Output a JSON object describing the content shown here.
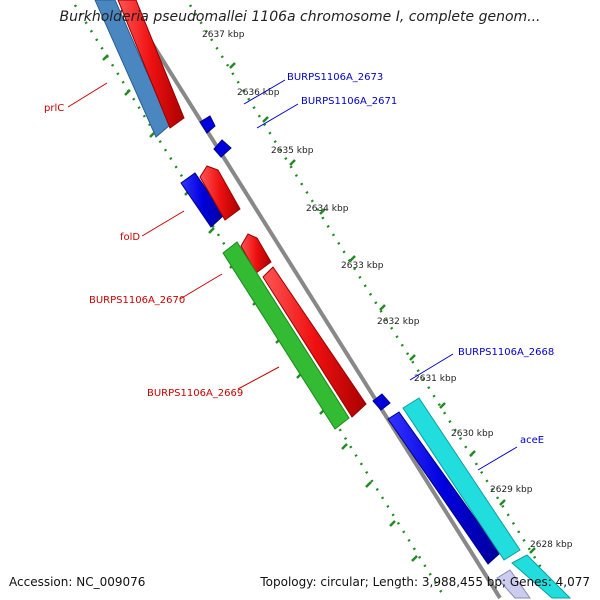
{
  "title": "Burkholderia pseudomallei 1106a chromosome I, complete genom...",
  "footer": {
    "accession": "Accession: NC_009076",
    "summary": "Topology: circular; Length: 3,988,455 bp; Genes: 4,077"
  },
  "ticks": [
    {
      "label": "2637 kbp"
    },
    {
      "label": "2636 kbp"
    },
    {
      "label": "2635 kbp"
    },
    {
      "label": "2634 kbp"
    },
    {
      "label": "2633 kbp"
    },
    {
      "label": "2632 kbp"
    },
    {
      "label": "2631 kbp"
    },
    {
      "label": "2630 kbp"
    },
    {
      "label": "2629 kbp"
    },
    {
      "label": "2628 kbp"
    }
  ],
  "genes_left": [
    {
      "label": "prlC",
      "color": "#cc0000"
    },
    {
      "label": "folD",
      "color": "#cc0000"
    },
    {
      "label": "BURPS1106A_2670",
      "color": "#cc0000"
    },
    {
      "label": "BURPS1106A_2669",
      "color": "#cc0000"
    }
  ],
  "genes_right": [
    {
      "label": "BURPS1106A_2673",
      "color": "#0000cc"
    },
    {
      "label": "BURPS1106A_2671",
      "color": "#0000cc"
    },
    {
      "label": "BURPS1106A_2668",
      "color": "#0000cc"
    },
    {
      "label": "aceE",
      "color": "#0000cc"
    }
  ],
  "colors": {
    "backbone": "#888888",
    "tick_dots": "#228B22",
    "feature_red": "#ee1111",
    "feature_blue": "#0000dd",
    "feature_steelblue": "#4a86bf",
    "feature_green": "#33bb33",
    "feature_cyan": "#22dddd"
  }
}
